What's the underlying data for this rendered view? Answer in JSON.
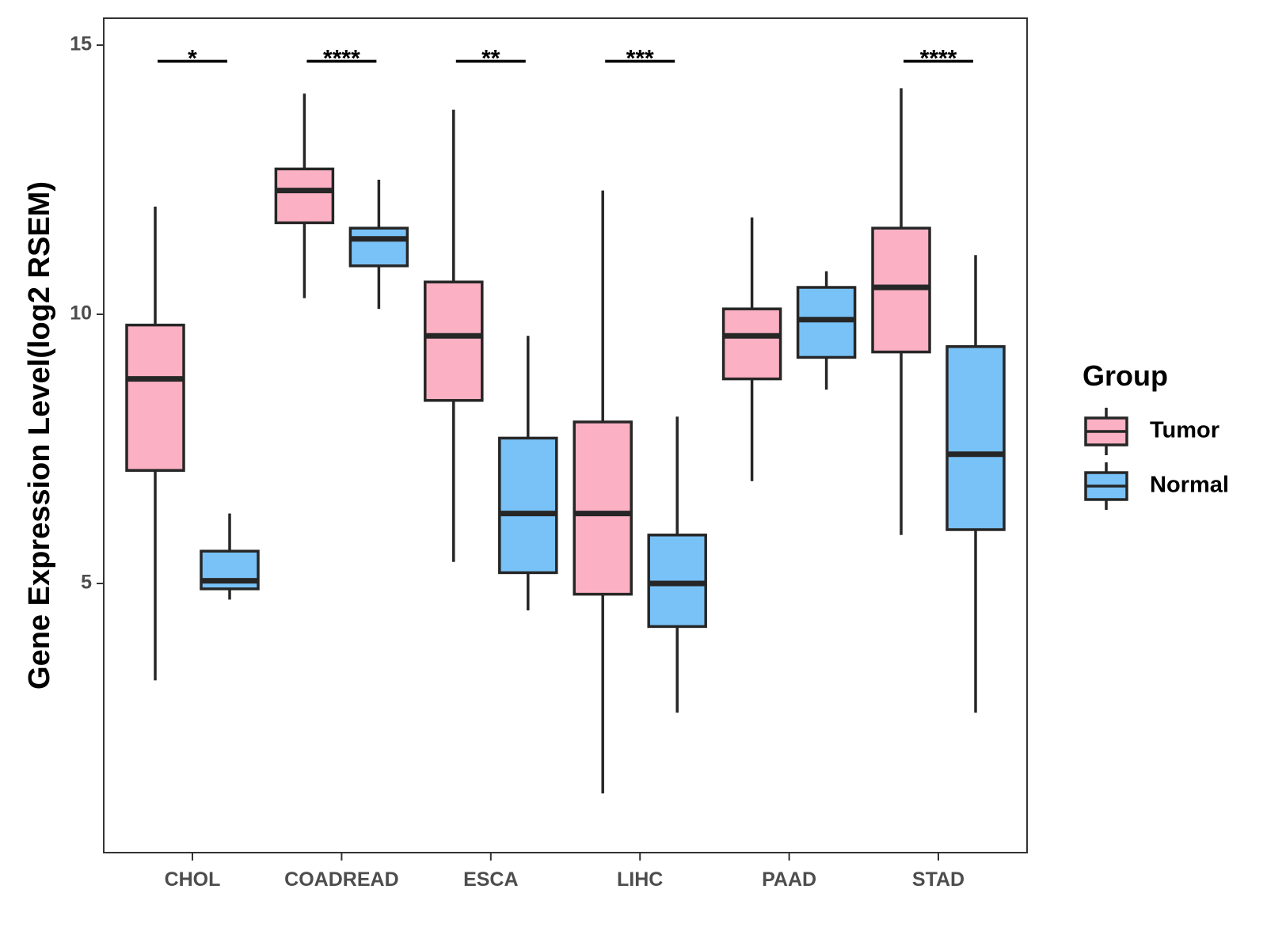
{
  "chart_data": {
    "type": "boxplot",
    "title": "",
    "xlabel": "",
    "ylabel": "Gene Expression Level(log2 RSEM)",
    "ylim": [
      0.0,
      15.5
    ],
    "yticks": [
      5,
      10,
      15
    ],
    "grid": false,
    "legend_position": "right",
    "legend_title": "Group",
    "categories": [
      "CHOL",
      "COADREAD",
      "ESCA",
      "LIHC",
      "PAAD",
      "STAD"
    ],
    "series": [
      {
        "name": "Tumor",
        "color": "#FBB1C3",
        "boxes": [
          {
            "whisker_low": 3.2,
            "q1": 7.1,
            "median": 8.8,
            "q3": 9.8,
            "whisker_high": 12.0
          },
          {
            "whisker_low": 10.3,
            "q1": 11.7,
            "median": 12.3,
            "q3": 12.7,
            "whisker_high": 14.1
          },
          {
            "whisker_low": 5.4,
            "q1": 8.4,
            "median": 9.6,
            "q3": 10.6,
            "whisker_high": 13.8
          },
          {
            "whisker_low": 1.1,
            "q1": 4.8,
            "median": 6.3,
            "q3": 8.0,
            "whisker_high": 12.3
          },
          {
            "whisker_low": 6.9,
            "q1": 8.8,
            "median": 9.6,
            "q3": 10.1,
            "whisker_high": 11.8
          },
          {
            "whisker_low": 5.9,
            "q1": 9.3,
            "median": 10.5,
            "q3": 11.6,
            "whisker_high": 14.2
          }
        ]
      },
      {
        "name": "Normal",
        "color": "#79C2F8",
        "boxes": [
          {
            "whisker_low": 4.7,
            "q1": 4.9,
            "median": 5.05,
            "q3": 5.6,
            "whisker_high": 6.3
          },
          {
            "whisker_low": 10.1,
            "q1": 10.9,
            "median": 11.4,
            "q3": 11.6,
            "whisker_high": 12.5
          },
          {
            "whisker_low": 4.5,
            "q1": 5.2,
            "median": 6.3,
            "q3": 7.7,
            "whisker_high": 9.6
          },
          {
            "whisker_low": 2.6,
            "q1": 4.2,
            "median": 5.0,
            "q3": 5.9,
            "whisker_high": 8.1
          },
          {
            "whisker_low": 8.6,
            "q1": 9.2,
            "median": 9.9,
            "q3": 10.5,
            "whisker_high": 10.8
          },
          {
            "whisker_low": 2.6,
            "q1": 6.0,
            "median": 7.4,
            "q3": 9.4,
            "whisker_high": 11.1
          }
        ]
      }
    ],
    "significance": [
      {
        "category": "CHOL",
        "label": "*"
      },
      {
        "category": "COADREAD",
        "label": "****"
      },
      {
        "category": "ESCA",
        "label": "**"
      },
      {
        "category": "LIHC",
        "label": "***"
      },
      {
        "category": "PAAD",
        "label": ""
      },
      {
        "category": "STAD",
        "label": "****"
      }
    ],
    "significance_y": 14.7
  }
}
